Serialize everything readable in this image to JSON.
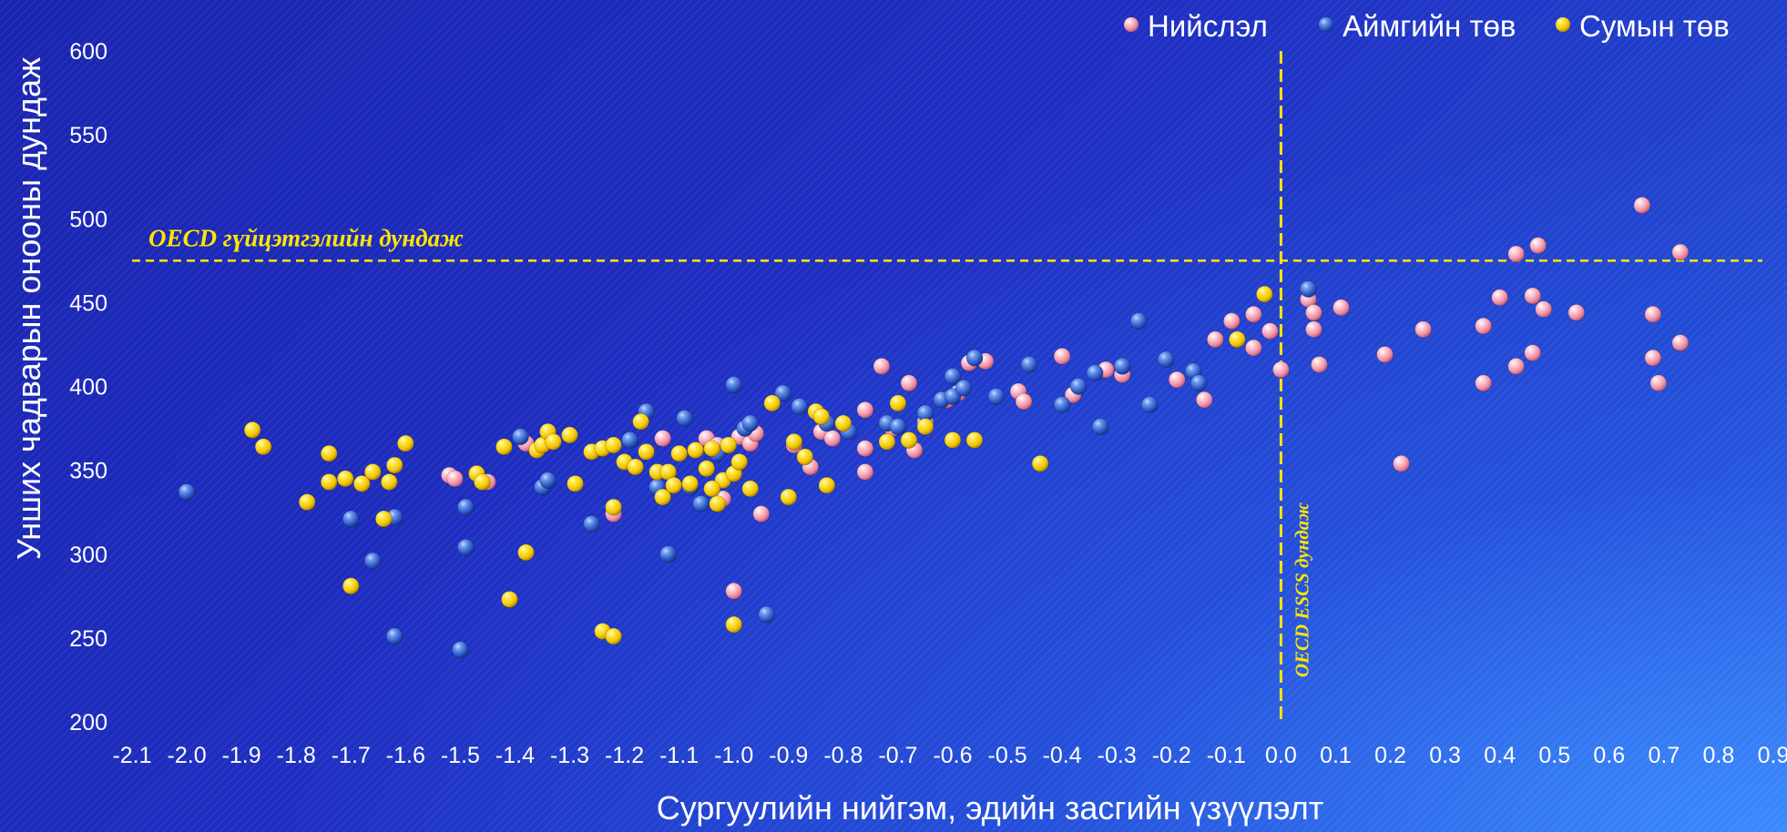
{
  "chart_data": {
    "type": "scatter",
    "xlabel": "Сургуулийн нийгэм, эдийн засгийн үзүүлэлт",
    "ylabel": "Унших чадварын онооны дундаж",
    "xlim": [
      -2.1,
      0.9
    ],
    "ylim": [
      200,
      600
    ],
    "x_ticks": [
      "-2.1",
      "-2.0",
      "-1.9",
      "-1.8",
      "-1.7",
      "-1.6",
      "-1.5",
      "-1.4",
      "-1.3",
      "-1.2",
      "-1.1",
      "-1.0",
      "-0.9",
      "-0.8",
      "-0.7",
      "-0.6",
      "-0.5",
      "-0.4",
      "-0.3",
      "-0.2",
      "-0.1",
      "0.0",
      "0.1",
      "0.2",
      "0.3",
      "0.4",
      "0.5",
      "0.6",
      "0.7",
      "0.8",
      "0.9"
    ],
    "y_ticks": [
      "200",
      "250",
      "300",
      "350",
      "400",
      "450",
      "500",
      "550",
      "600"
    ],
    "grid": false,
    "legend_position": "top-right",
    "reference_lines": [
      {
        "orientation": "horizontal",
        "value": 475,
        "label": "OECD гүйцэтгэлийн дундаж",
        "color": "#ffe600"
      },
      {
        "orientation": "vertical",
        "value": 0.0,
        "label": "OECD ESCS дундаж",
        "color": "#ffe600"
      }
    ],
    "series": [
      {
        "name": "Нийслэл",
        "color": "#f2a2b2",
        "points": [
          [
            -1.52,
            347
          ],
          [
            -1.51,
            345
          ],
          [
            -1.45,
            343
          ],
          [
            -1.38,
            366
          ],
          [
            -1.13,
            369
          ],
          [
            -1.05,
            369
          ],
          [
            -1.03,
            365
          ],
          [
            -1.02,
            333
          ],
          [
            -0.99,
            370
          ],
          [
            -0.97,
            366
          ],
          [
            -0.96,
            372
          ],
          [
            -0.95,
            324
          ],
          [
            -0.89,
            365
          ],
          [
            -0.86,
            352
          ],
          [
            -0.84,
            373
          ],
          [
            -0.82,
            369
          ],
          [
            -0.76,
            349
          ],
          [
            -0.76,
            363
          ],
          [
            -0.76,
            386
          ],
          [
            -0.73,
            412
          ],
          [
            -0.71,
            375
          ],
          [
            -0.68,
            402
          ],
          [
            -0.67,
            362
          ],
          [
            -0.65,
            379
          ],
          [
            -0.61,
            392
          ],
          [
            -0.59,
            396
          ],
          [
            -0.57,
            414
          ],
          [
            -0.54,
            415
          ],
          [
            -0.48,
            397
          ],
          [
            -0.47,
            391
          ],
          [
            -0.4,
            418
          ],
          [
            -0.38,
            395
          ],
          [
            -0.32,
            410
          ],
          [
            -0.29,
            407
          ],
          [
            -0.19,
            404
          ],
          [
            -0.14,
            392
          ],
          [
            -0.12,
            428
          ],
          [
            -0.09,
            439
          ],
          [
            -0.05,
            443
          ],
          [
            -0.05,
            423
          ],
          [
            -0.02,
            433
          ],
          [
            0.0,
            410
          ],
          [
            0.05,
            452
          ],
          [
            0.06,
            444
          ],
          [
            0.06,
            434
          ],
          [
            0.07,
            413
          ],
          [
            0.11,
            447
          ],
          [
            0.19,
            419
          ],
          [
            0.22,
            354
          ],
          [
            0.26,
            434
          ],
          [
            0.37,
            436
          ],
          [
            0.37,
            402
          ],
          [
            0.4,
            453
          ],
          [
            0.43,
            412
          ],
          [
            0.43,
            479
          ],
          [
            0.46,
            454
          ],
          [
            0.46,
            420
          ],
          [
            0.47,
            484
          ],
          [
            0.48,
            446
          ],
          [
            0.54,
            444
          ],
          [
            0.66,
            508
          ],
          [
            0.68,
            443
          ],
          [
            0.68,
            417
          ],
          [
            0.69,
            402
          ],
          [
            0.73,
            480
          ],
          [
            0.73,
            426
          ],
          [
            -1.0,
            278
          ],
          [
            -1.22,
            324
          ]
        ]
      },
      {
        "name": "Аймгийн төв",
        "color": "#3a6bd8",
        "points": [
          [
            -2.0,
            337
          ],
          [
            -1.7,
            321
          ],
          [
            -1.66,
            296
          ],
          [
            -1.62,
            322
          ],
          [
            -1.62,
            251
          ],
          [
            -1.5,
            243
          ],
          [
            -1.49,
            304
          ],
          [
            -1.49,
            328
          ],
          [
            -1.39,
            370
          ],
          [
            -1.35,
            340
          ],
          [
            -1.34,
            344
          ],
          [
            -1.26,
            318
          ],
          [
            -1.19,
            368
          ],
          [
            -1.16,
            385
          ],
          [
            -1.14,
            340
          ],
          [
            -1.12,
            300
          ],
          [
            -1.09,
            381
          ],
          [
            -1.08,
            340
          ],
          [
            -1.06,
            330
          ],
          [
            -1.03,
            360
          ],
          [
            -1.0,
            401
          ],
          [
            -0.98,
            375
          ],
          [
            -0.97,
            378
          ],
          [
            -0.94,
            264
          ],
          [
            -0.91,
            396
          ],
          [
            -0.88,
            388
          ],
          [
            -0.83,
            378
          ],
          [
            -0.79,
            373
          ],
          [
            -0.72,
            378
          ],
          [
            -0.7,
            376
          ],
          [
            -0.65,
            384
          ],
          [
            -0.62,
            392
          ],
          [
            -0.6,
            394
          ],
          [
            -0.6,
            406
          ],
          [
            -0.58,
            399
          ],
          [
            -0.56,
            417
          ],
          [
            -0.52,
            394
          ],
          [
            -0.46,
            413
          ],
          [
            -0.4,
            389
          ],
          [
            -0.37,
            400
          ],
          [
            -0.34,
            408
          ],
          [
            -0.33,
            376
          ],
          [
            -0.29,
            412
          ],
          [
            -0.26,
            439
          ],
          [
            -0.24,
            389
          ],
          [
            -0.21,
            416
          ],
          [
            -0.16,
            409
          ],
          [
            -0.15,
            402
          ],
          [
            0.05,
            458
          ]
        ]
      },
      {
        "name": "Сумын төв",
        "color": "#ffd400",
        "points": [
          [
            -1.88,
            374
          ],
          [
            -1.86,
            364
          ],
          [
            -1.78,
            331
          ],
          [
            -1.74,
            360
          ],
          [
            -1.74,
            343
          ],
          [
            -1.71,
            345
          ],
          [
            -1.7,
            281
          ],
          [
            -1.68,
            342
          ],
          [
            -1.66,
            349
          ],
          [
            -1.64,
            321
          ],
          [
            -1.63,
            343
          ],
          [
            -1.62,
            353
          ],
          [
            -1.6,
            366
          ],
          [
            -1.47,
            348
          ],
          [
            -1.46,
            343
          ],
          [
            -1.42,
            364
          ],
          [
            -1.41,
            273
          ],
          [
            -1.38,
            301
          ],
          [
            -1.36,
            362
          ],
          [
            -1.35,
            365
          ],
          [
            -1.34,
            373
          ],
          [
            -1.33,
            367
          ],
          [
            -1.3,
            371
          ],
          [
            -1.29,
            342
          ],
          [
            -1.26,
            361
          ],
          [
            -1.24,
            363
          ],
          [
            -1.22,
            365
          ],
          [
            -1.2,
            355
          ],
          [
            -1.18,
            352
          ],
          [
            -1.17,
            379
          ],
          [
            -1.16,
            361
          ],
          [
            -1.14,
            349
          ],
          [
            -1.13,
            334
          ],
          [
            -1.12,
            349
          ],
          [
            -1.11,
            341
          ],
          [
            -1.1,
            360
          ],
          [
            -1.08,
            342
          ],
          [
            -1.07,
            362
          ],
          [
            -1.05,
            351
          ],
          [
            -1.04,
            363
          ],
          [
            -1.03,
            330
          ],
          [
            -1.02,
            344
          ],
          [
            -1.01,
            365
          ],
          [
            -1.0,
            348
          ],
          [
            -0.99,
            355
          ],
          [
            -0.97,
            339
          ],
          [
            -0.93,
            390
          ],
          [
            -0.9,
            334
          ],
          [
            -0.89,
            367
          ],
          [
            -0.87,
            358
          ],
          [
            -0.85,
            385
          ],
          [
            -0.84,
            382
          ],
          [
            -0.83,
            341
          ],
          [
            -0.8,
            378
          ],
          [
            -0.72,
            367
          ],
          [
            -0.7,
            390
          ],
          [
            -0.68,
            368
          ],
          [
            -0.65,
            376
          ],
          [
            -0.6,
            368
          ],
          [
            -0.56,
            368
          ],
          [
            -0.44,
            354
          ],
          [
            -0.08,
            428
          ],
          [
            -0.03,
            455
          ],
          [
            -1.24,
            254
          ],
          [
            -1.22,
            251
          ],
          [
            -1.0,
            258
          ],
          [
            -1.22,
            328
          ],
          [
            -1.04,
            339
          ]
        ]
      }
    ]
  }
}
